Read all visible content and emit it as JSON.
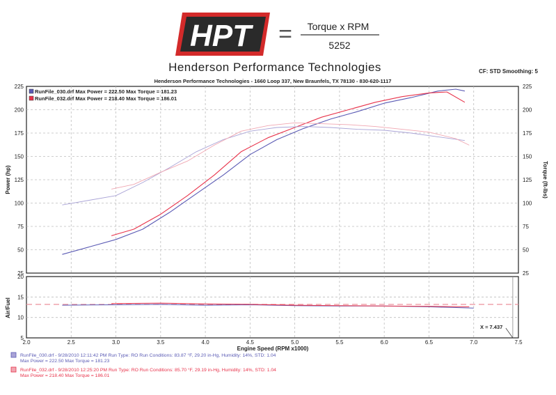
{
  "header": {
    "logo_text": "HPT",
    "formula_numerator": "Torque x RPM",
    "formula_equals": "=",
    "formula_denominator": "5252",
    "company": "Henderson Performance Technologies",
    "address": "Henderson Performance Technologies - 1660 Loop 337, New Braunfels, TX 78130 - 830-620-1117",
    "settings": "CF: STD  Smoothing: 5"
  },
  "colors": {
    "run1": "#5a5ab4",
    "run2": "#e8324a",
    "run1_light": "#a9a3d6",
    "run2_light": "#f0a6b1",
    "grid": "#bdbdbd",
    "frame": "#222222",
    "marker": "#ee9aa3"
  },
  "chart_data": [
    {
      "type": "line",
      "name": "power-torque",
      "xlabel": "Engine Speed (RPM x1000)",
      "ylabel": "Power (hp)",
      "ylabel_right": "Torque (ft-lbs)",
      "xlim": [
        2.0,
        7.5
      ],
      "ylim": [
        25,
        225
      ],
      "ylim_right": [
        25,
        225
      ],
      "x_ticks": [
        "2.0",
        "2.5",
        "3.0",
        "3.5",
        "4.0",
        "4.5",
        "5.0",
        "5.5",
        "6.0",
        "6.5",
        "7.0",
        "7.5"
      ],
      "y_ticks": [
        25,
        50,
        75,
        100,
        125,
        150,
        175,
        200,
        225
      ],
      "y_ticks_right": [
        25,
        50,
        75,
        100,
        125,
        150,
        175,
        200,
        225
      ],
      "legend": [
        {
          "label": "RunFile_030.drf Max Power = 222.50   Max Torque = 181.23"
        },
        {
          "label": "RunFile_032.drf Max Power = 218.40   Max Torque = 186.01"
        }
      ],
      "series": [
        {
          "name": "RunFile_030 Power",
          "color_key": "run1",
          "x": [
            2.4,
            2.7,
            3.0,
            3.3,
            3.6,
            3.9,
            4.2,
            4.5,
            4.8,
            5.1,
            5.4,
            5.7,
            6.0,
            6.3,
            6.6,
            6.8,
            6.9
          ],
          "y": [
            45,
            53,
            61,
            72,
            90,
            110,
            130,
            152,
            168,
            180,
            190,
            198,
            207,
            213,
            220,
            222,
            220
          ]
        },
        {
          "name": "RunFile_032 Power",
          "color_key": "run2",
          "x": [
            2.95,
            3.2,
            3.5,
            3.8,
            4.1,
            4.4,
            4.7,
            5.0,
            5.3,
            5.6,
            5.9,
            6.2,
            6.5,
            6.7,
            6.9
          ],
          "y": [
            65,
            72,
            88,
            108,
            130,
            155,
            170,
            181,
            192,
            200,
            208,
            214,
            218,
            219,
            208
          ]
        },
        {
          "name": "RunFile_030 Torque",
          "color_key": "run1_light",
          "x": [
            2.4,
            2.7,
            3.0,
            3.3,
            3.6,
            3.9,
            4.2,
            4.5,
            4.8,
            5.1,
            5.4,
            5.7,
            6.0,
            6.3,
            6.6,
            6.9
          ],
          "y": [
            98,
            103,
            108,
            122,
            138,
            155,
            168,
            177,
            181,
            182,
            181,
            179,
            178,
            175,
            171,
            167
          ]
        },
        {
          "name": "RunFile_032 Torque",
          "color_key": "run2_light",
          "x": [
            2.95,
            3.2,
            3.5,
            3.8,
            4.1,
            4.4,
            4.7,
            5.0,
            5.3,
            5.6,
            5.9,
            6.2,
            6.5,
            6.8,
            6.95
          ],
          "y": [
            115,
            120,
            133,
            145,
            162,
            177,
            183,
            186,
            185,
            184,
            182,
            179,
            176,
            169,
            162
          ]
        }
      ]
    },
    {
      "type": "line",
      "name": "air-fuel",
      "ylabel": "Air/Fuel",
      "xlim": [
        2.0,
        7.5
      ],
      "ylim": [
        5,
        20
      ],
      "y_ticks": [
        5,
        10,
        15,
        20
      ],
      "cursor_readout": "X = 7.437",
      "cursor_x": 7.437,
      "reference_line": 13.2,
      "series": [
        {
          "name": "RunFile_030 AFR",
          "color_key": "run1",
          "x": [
            2.4,
            3.0,
            3.5,
            4.0,
            4.5,
            5.0,
            5.5,
            6.0,
            6.5,
            7.0
          ],
          "y": [
            13.0,
            13.1,
            13.2,
            13.0,
            13.1,
            12.9,
            12.8,
            12.8,
            12.6,
            12.3
          ]
        },
        {
          "name": "RunFile_032 AFR",
          "color_key": "run2",
          "x": [
            2.95,
            3.5,
            4.0,
            4.5,
            5.0,
            5.5,
            6.0,
            6.5,
            6.95
          ],
          "y": [
            13.4,
            13.5,
            13.3,
            13.2,
            13.0,
            12.9,
            12.8,
            12.7,
            12.6
          ]
        }
      ]
    }
  ],
  "run_details": [
    {
      "line1": "RunFile_030.drf - 9/28/2010 12:11:42 PM  Run Type: RO  Run Conditions: 83.87 °F, 29.20 in-Hg,  Humidity:  14%, STD: 1.04",
      "line2": "Max Power = 222.50  Max Torque = 181.23"
    },
    {
      "line1": "RunFile_032.drf - 9/28/2010 12:25:20 PM  Run Type: RO  Run Conditions: 85.70 °F, 29.19 in-Hg,  Humidity:  14%, STD: 1.04",
      "line2": "Max Power = 218.40  Max Torque = 186.01"
    }
  ]
}
